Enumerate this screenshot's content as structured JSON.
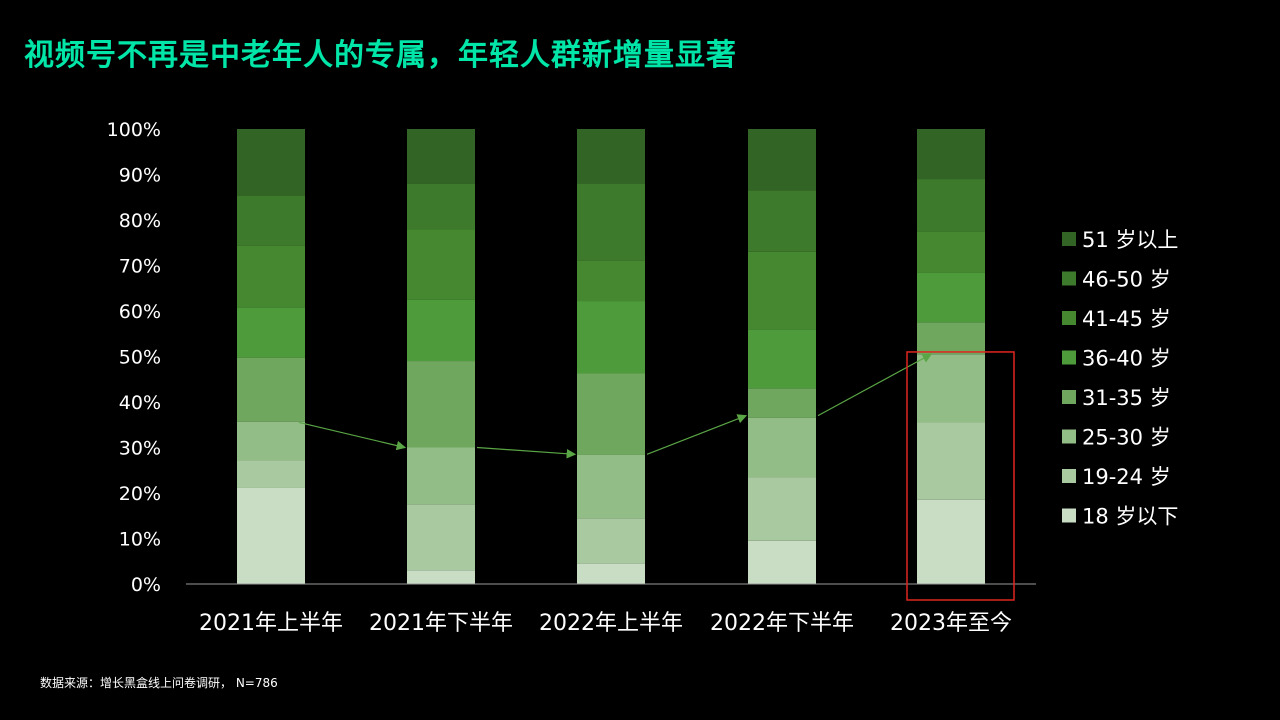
{
  "title": "视频号不再是中老年人的专属，年轻人群新增量显著",
  "footnote": "数据来源：增长黑盒线上问卷调研， N=786",
  "chart_data": {
    "type": "bar",
    "stacked": true,
    "categories": [
      "2021年上半年",
      "2021年下半年",
      "2022年上半年",
      "2022年下半年",
      "2023年至今"
    ],
    "y_ticks": [
      "0%",
      "10%",
      "20%",
      "30%",
      "40%",
      "50%",
      "60%",
      "70%",
      "80%",
      "90%",
      "100%"
    ],
    "ylim": [
      0,
      100
    ],
    "grid": false,
    "legend_position": "right",
    "series": [
      {
        "name": "18 岁以下",
        "color": "#c9dcc4",
        "values": [
          21,
          3,
          4.5,
          9.5,
          18.5
        ]
      },
      {
        "name": "19-24 岁",
        "color": "#a9c9a0",
        "values": [
          6,
          14.5,
          10,
          14,
          17
        ]
      },
      {
        "name": "25-30 岁",
        "color": "#93bd87",
        "values": [
          8.5,
          12.5,
          14,
          13,
          15
        ]
      },
      {
        "name": "31-35 岁",
        "color": "#6fa75f",
        "values": [
          14,
          19,
          18,
          6.5,
          7
        ]
      },
      {
        "name": "36-40 岁",
        "color": "#4e9b3c",
        "values": [
          11,
          13.5,
          16,
          13,
          11
        ]
      },
      {
        "name": "41-45 岁",
        "color": "#46882f",
        "values": [
          13.5,
          15.5,
          9,
          17,
          9
        ]
      },
      {
        "name": "46-50 岁",
        "color": "#3e7a2c",
        "values": [
          11,
          10,
          17,
          13.5,
          11.5
        ]
      },
      {
        "name": "51 岁以上",
        "color": "#326426",
        "values": [
          14.5,
          12,
          12,
          13.5,
          11
        ]
      }
    ],
    "trend_line": {
      "color": "#5aa545",
      "description_values": [
        35.5,
        30,
        28.5,
        37,
        50.5
      ]
    },
    "highlight_category_index": 4,
    "highlight_color": "#e0251f"
  }
}
